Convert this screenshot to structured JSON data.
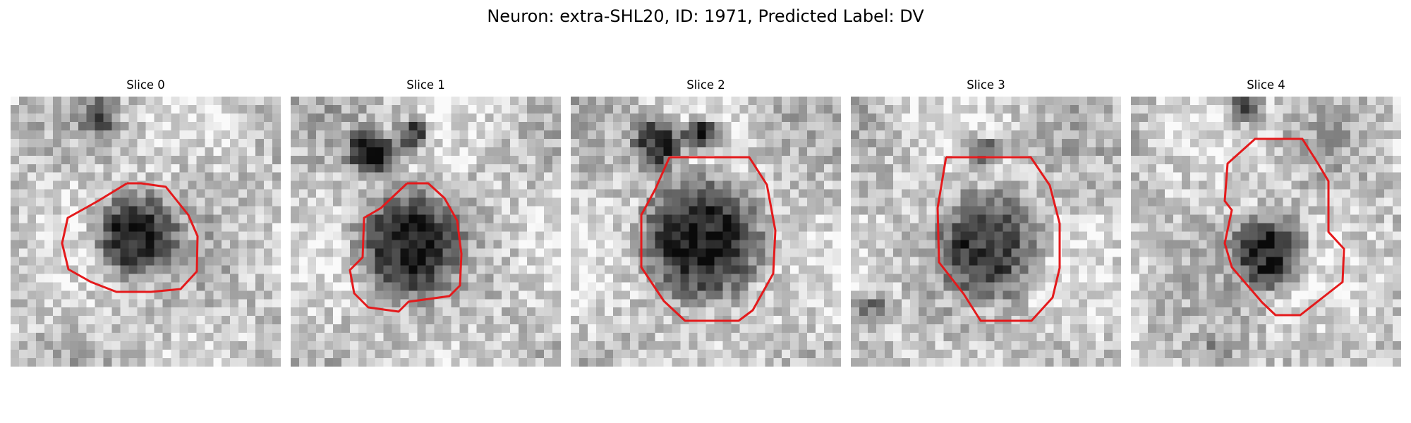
{
  "figure": {
    "title": "Neuron: extra-SHL20, ID: 1971, Predicted Label: DV",
    "contour_color": "#e41a1c"
  },
  "panels": [
    {
      "label": "Slice 0",
      "index": 0
    },
    {
      "label": "Slice 1",
      "index": 1
    },
    {
      "label": "Slice 2",
      "index": 2
    },
    {
      "label": "Slice 3",
      "index": 3
    },
    {
      "label": "Slice 4",
      "index": 4
    }
  ]
}
